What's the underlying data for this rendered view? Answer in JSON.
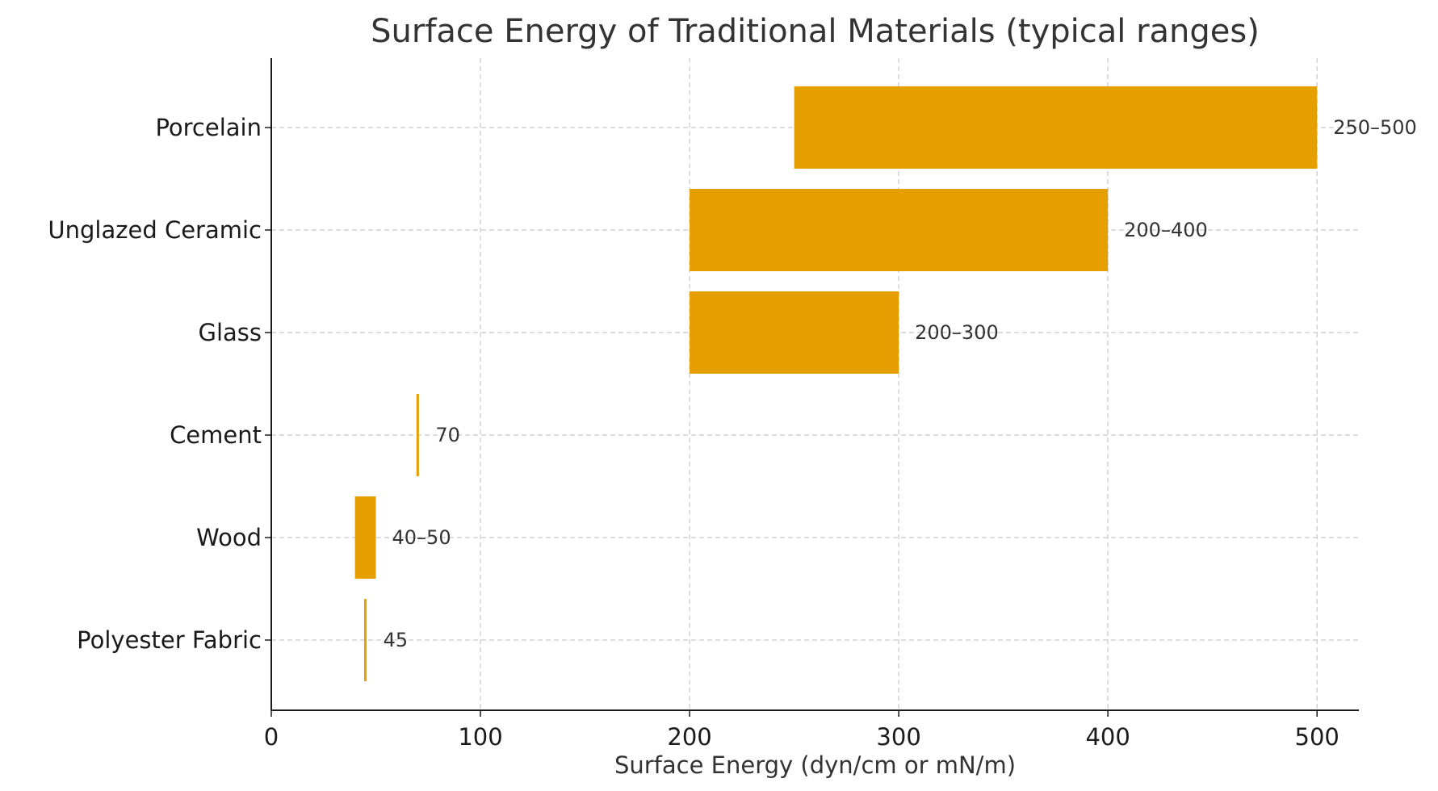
{
  "chart_data": {
    "type": "bar",
    "orientation": "horizontal",
    "title": "Surface Energy of Traditional Materials (typical ranges)",
    "xlabel": "Surface Energy (dyn/cm or mN/m)",
    "ylabel": "",
    "xlim": [
      0,
      520
    ],
    "xticks": [
      0,
      100,
      200,
      300,
      400,
      500
    ],
    "grid": true,
    "bar_color": "#E69F00",
    "axis_color": "#1a1a1a",
    "grid_color": "#c8c8c8",
    "categories": [
      "Porcelain",
      "Unglazed Ceramic",
      "Glass",
      "Cement",
      "Wood",
      "Polyester Fabric"
    ],
    "ranges": [
      {
        "category": "Porcelain",
        "min": 250,
        "max": 500,
        "label": "250–500"
      },
      {
        "category": "Unglazed Ceramic",
        "min": 200,
        "max": 400,
        "label": "200–400"
      },
      {
        "category": "Glass",
        "min": 200,
        "max": 300,
        "label": "200–300"
      },
      {
        "category": "Cement",
        "min": 70,
        "max": 70,
        "label": "70"
      },
      {
        "category": "Wood",
        "min": 40,
        "max": 50,
        "label": "40–50"
      },
      {
        "category": "Polyester Fabric",
        "min": 45,
        "max": 45,
        "label": "45"
      }
    ]
  }
}
